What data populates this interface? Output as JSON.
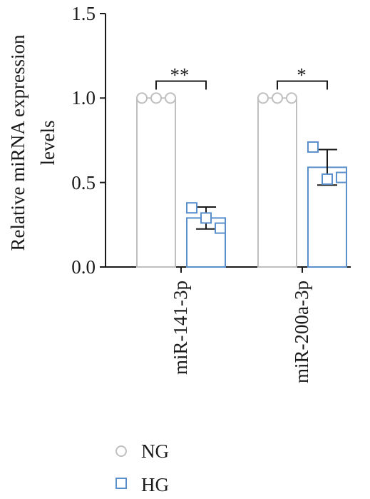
{
  "chart_data": {
    "type": "bar",
    "title": "",
    "xlabel": "",
    "ylabel_lines": [
      "Relative miRNA expression",
      "levels"
    ],
    "ylim": [
      0,
      1.5
    ],
    "yticks": [
      "0.0",
      "0.5",
      "1.0",
      "1.5"
    ],
    "grid": false,
    "legend_position": "bottom-left",
    "categories": [
      "miR-141-3p",
      "miR-200a-3p"
    ],
    "series": [
      {
        "name": "NG",
        "color": "#bfbfbf",
        "marker": "circle",
        "values": [
          1.0,
          1.0
        ],
        "points": [
          [
            1.0,
            1.0,
            1.0
          ],
          [
            1.0,
            1.0,
            1.0
          ]
        ]
      },
      {
        "name": "HG",
        "color": "#5b8fcc",
        "marker": "square",
        "values": [
          0.29,
          0.59
        ],
        "error": [
          0.065,
          0.105
        ],
        "points": [
          [
            0.35,
            0.29,
            0.23
          ],
          [
            0.71,
            0.52,
            0.53
          ]
        ]
      }
    ],
    "significance": [
      "**",
      "*"
    ]
  }
}
